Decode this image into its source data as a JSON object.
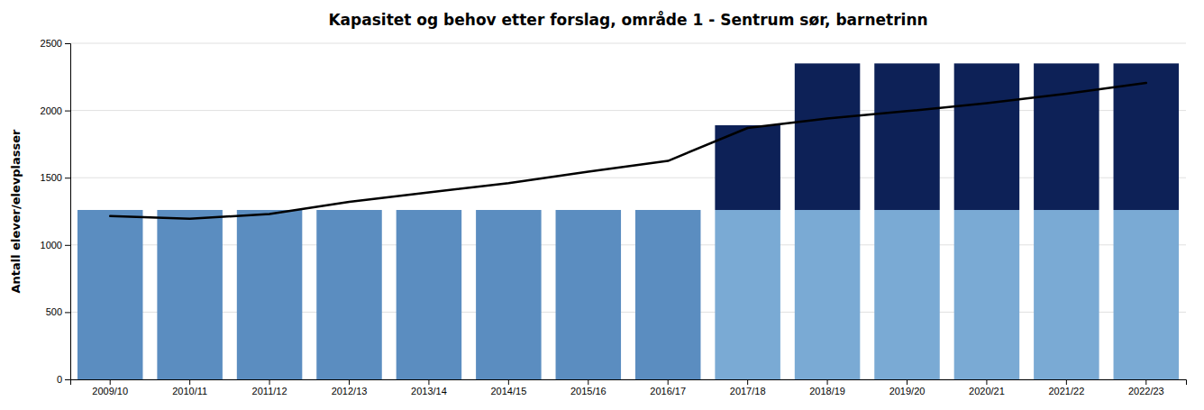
{
  "chart_data": {
    "type": "bar",
    "title": "Kapasitet og behov etter forslag, område 1 - Sentrum sør, barnetrinn",
    "y_label": "Antall elever/elevplasser",
    "categories": [
      "2009/10",
      "2010/11",
      "2011/12",
      "2012/13",
      "2013/14",
      "2014/15",
      "2015/16",
      "2016/17",
      "2017/18",
      "2018/19",
      "2019/20",
      "2020/21",
      "2021/22",
      "2022/23"
    ],
    "stacked": true,
    "series": [
      {
        "type": "bar",
        "values": [
          1260,
          1260,
          1260,
          1260,
          1260,
          1260,
          1260,
          1260,
          1260,
          1260,
          1260,
          1260,
          1260,
          1260
        ],
        "colors": [
          "#5B8DC0",
          "#5B8DC0",
          "#5B8DC0",
          "#5B8DC0",
          "#5B8DC0",
          "#5B8DC0",
          "#5B8DC0",
          "#5B8DC0",
          "#7AAAD4",
          "#7AAAD4",
          "#7AAAD4",
          "#7AAAD4",
          "#7AAAD4",
          "#7AAAD4"
        ]
      },
      {
        "type": "bar",
        "values": [
          0,
          0,
          0,
          0,
          0,
          0,
          0,
          0,
          630,
          1090,
          1090,
          1090,
          1090,
          1090
        ],
        "color": "#0D2157"
      },
      {
        "type": "line",
        "values": [
          1215,
          1195,
          1230,
          1320,
          1390,
          1460,
          1545,
          1625,
          1870,
          1940,
          1995,
          2055,
          2125,
          2205
        ],
        "color": "#000000"
      }
    ],
    "ylim": [
      0,
      2500
    ],
    "yticks": [
      0,
      500,
      1000,
      1500,
      2000,
      2500
    ],
    "grid": true
  }
}
